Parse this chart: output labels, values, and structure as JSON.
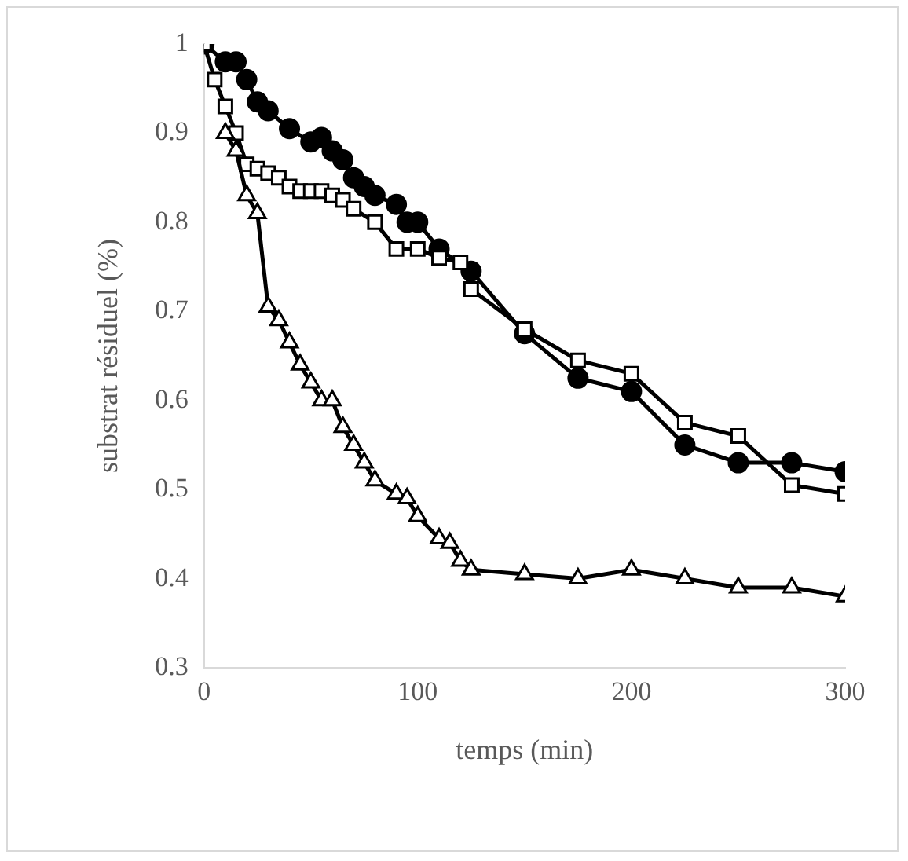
{
  "chart_data": {
    "type": "line",
    "xlabel": "temps (min)",
    "ylabel": "substrat résiduel (%)",
    "xlim": [
      0,
      300
    ],
    "xticks": [
      0,
      100,
      200,
      300
    ],
    "ylim": [
      0.3,
      1
    ],
    "yticks": [
      0.3,
      0.4,
      0.5,
      0.6,
      0.7,
      0.8,
      0.9,
      1
    ],
    "grid": false,
    "legend": false,
    "line_style": "solid",
    "series": [
      {
        "color": "#000000",
        "marker": "circle",
        "x": [
          0,
          10,
          15,
          20,
          25,
          30,
          40,
          50,
          55,
          60,
          65,
          70,
          75,
          80,
          90,
          95,
          100,
          110,
          125,
          150,
          175,
          200,
          225,
          250,
          275,
          300
        ],
        "values": [
          1,
          0.98,
          0.98,
          0.96,
          0.935,
          0.925,
          0.905,
          0.89,
          0.895,
          0.88,
          0.87,
          0.85,
          0.84,
          0.83,
          0.82,
          0.8,
          0.8,
          0.77,
          0.745,
          0.675,
          0.625,
          0.61,
          0.55,
          0.53,
          0.53,
          0.52
        ]
      },
      {
        "color": "#000000",
        "marker": "square",
        "x": [
          0,
          5,
          10,
          15,
          20,
          25,
          30,
          35,
          40,
          45,
          50,
          55,
          60,
          65,
          70,
          80,
          90,
          100,
          110,
          120,
          125,
          150,
          175,
          200,
          225,
          250,
          275,
          300
        ],
        "values": [
          1,
          0.96,
          0.93,
          0.9,
          0.865,
          0.86,
          0.855,
          0.85,
          0.84,
          0.835,
          0.835,
          0.835,
          0.83,
          0.825,
          0.815,
          0.8,
          0.77,
          0.77,
          0.76,
          0.755,
          0.725,
          0.68,
          0.645,
          0.63,
          0.575,
          0.56,
          0.505,
          0.495
        ]
      },
      {
        "color": "#000000",
        "marker": "triangle",
        "x": [
          10,
          15,
          20,
          25,
          30,
          35,
          40,
          45,
          50,
          55,
          60,
          65,
          70,
          75,
          80,
          90,
          95,
          100,
          110,
          115,
          120,
          125,
          150,
          175,
          200,
          225,
          250,
          275,
          300
        ],
        "values": [
          0.9,
          0.88,
          0.83,
          0.81,
          0.705,
          0.69,
          0.665,
          0.64,
          0.62,
          0.6,
          0.6,
          0.57,
          0.55,
          0.53,
          0.51,
          0.495,
          0.49,
          0.47,
          0.445,
          0.44,
          0.42,
          0.41,
          0.405,
          0.4,
          0.41,
          0.4,
          0.39,
          0.39,
          0.38
        ]
      }
    ]
  }
}
